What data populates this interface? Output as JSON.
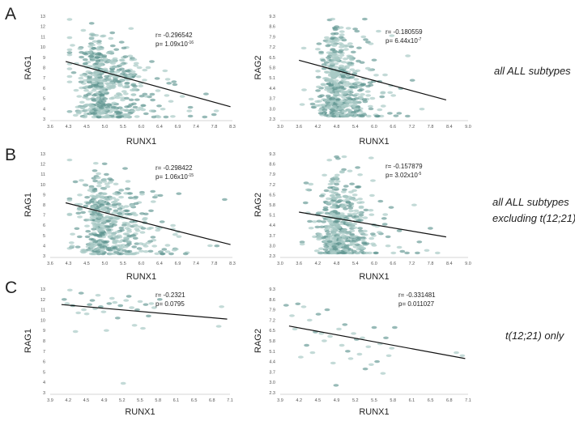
{
  "rows": [
    {
      "label": "A",
      "condition_lines": [
        "all ALL subtypes"
      ]
    },
    {
      "label": "B",
      "condition_lines": [
        "all ALL subtypes",
        "excluding t(12;21)"
      ]
    },
    {
      "label": "C",
      "condition_lines": [
        "t(12;21) only"
      ]
    }
  ],
  "chart_data": [
    {
      "type": "scatter",
      "row": "A",
      "gene": "RAG1",
      "xlabel": "RUNX1",
      "ylabel": "RAG1",
      "xticks": [
        "3.6",
        "4.3",
        "4.5",
        "5.0",
        "5.5",
        "6.0",
        "6.4",
        "6.9",
        "7.4",
        "7.8",
        "8.3"
      ],
      "yticks": [
        "3",
        "4",
        "5",
        "6",
        "7",
        "8",
        "9",
        "10",
        "11",
        "12",
        "13"
      ],
      "xlim": [
        3.6,
        8.3
      ],
      "ylim": [
        3,
        13
      ],
      "stat_r": "r= -0.296542",
      "stat_p_base": "p= 1.09x10",
      "stat_p_exp": "-16",
      "fit": {
        "x": [
          4.0,
          8.25
        ],
        "y": [
          8.6,
          4.2
        ]
      },
      "cloud": {
        "n": 560,
        "seed": 11,
        "xmean": 4.95,
        "xsd": 0.55,
        "xmin": 4.1,
        "xmax": 8.1,
        "ymin": 3.2,
        "ymax": 12.8,
        "ymean": 6.9,
        "ysd": 2.2,
        "slope": -0.9
      }
    },
    {
      "type": "scatter",
      "row": "A",
      "gene": "RAG2",
      "xlabel": "RUNX1",
      "ylabel": "RAG2",
      "xticks": [
        "3.0",
        "3.6",
        "4.2",
        "4.8",
        "5.4",
        "6.0",
        "6.6",
        "7.2",
        "7.8",
        "8.4",
        "9.0"
      ],
      "yticks": [
        "2.3",
        "3.0",
        "3.7",
        "4.4",
        "5.1",
        "5.8",
        "6.5",
        "7.2",
        "7.9",
        "8.6",
        "9.3"
      ],
      "xlim": [
        3.0,
        9.0
      ],
      "ylim": [
        2.3,
        9.3
      ],
      "stat_r": "r= -0.180559",
      "stat_p_base": "p= 6.44x10",
      "stat_p_exp": "-7",
      "fit": {
        "x": [
          3.6,
          8.3
        ],
        "y": [
          6.3,
          3.6
        ]
      },
      "cloud": {
        "n": 560,
        "seed": 23,
        "xmean": 4.85,
        "xsd": 0.5,
        "xmin": 3.7,
        "xmax": 8.2,
        "ymin": 2.5,
        "ymax": 9.1,
        "ymean": 4.9,
        "ysd": 1.7,
        "slope": -0.6
      }
    },
    {
      "type": "scatter",
      "row": "B",
      "gene": "RAG1",
      "xlabel": "RUNX1",
      "ylabel": "RAG1",
      "xticks": [
        "3.6",
        "4.3",
        "4.5",
        "5.0",
        "5.5",
        "6.0",
        "6.4",
        "6.9",
        "7.4",
        "7.8",
        "8.3"
      ],
      "yticks": [
        "3",
        "4",
        "5",
        "6",
        "7",
        "8",
        "9",
        "10",
        "11",
        "12",
        "13"
      ],
      "xlim": [
        3.6,
        8.3
      ],
      "ylim": [
        3,
        13
      ],
      "stat_r": "r= -0.298422",
      "stat_p_base": "p= 1.06x10",
      "stat_p_exp": "-15",
      "fit": {
        "x": [
          4.0,
          8.25
        ],
        "y": [
          8.2,
          4.1
        ]
      },
      "cloud": {
        "n": 500,
        "seed": 37,
        "xmean": 5.0,
        "xsd": 0.55,
        "xmin": 4.1,
        "xmax": 8.1,
        "ymin": 3.2,
        "ymax": 12.4,
        "ymean": 6.8,
        "ysd": 2.1,
        "slope": -0.9
      }
    },
    {
      "type": "scatter",
      "row": "B",
      "gene": "RAG2",
      "xlabel": "RUNX1",
      "ylabel": "RAG2",
      "xticks": [
        "3.0",
        "3.6",
        "4.2",
        "4.8",
        "5.4",
        "6.0",
        "6.6",
        "7.2",
        "7.8",
        "8.4",
        "9.0"
      ],
      "yticks": [
        "2.3",
        "3.0",
        "3.7",
        "4.4",
        "5.1",
        "5.8",
        "6.5",
        "7.2",
        "7.9",
        "8.6",
        "9.3"
      ],
      "xlim": [
        3.0,
        9.0
      ],
      "ylim": [
        2.3,
        9.3
      ],
      "stat_r": "r= -0.157879",
      "stat_p_base": "p= 3.02x10",
      "stat_p_exp": "-5",
      "fit": {
        "x": [
          3.6,
          8.3
        ],
        "y": [
          5.3,
          3.6
        ]
      },
      "cloud": {
        "n": 500,
        "seed": 53,
        "xmean": 4.85,
        "xsd": 0.5,
        "xmin": 3.7,
        "xmax": 8.2,
        "ymin": 2.5,
        "ymax": 9.1,
        "ymean": 4.8,
        "ysd": 1.7,
        "slope": -0.5
      }
    },
    {
      "type": "scatter",
      "row": "C",
      "gene": "RAG1",
      "xlabel": "RUNX1",
      "ylabel": "RAG1",
      "xticks": [
        "3.9",
        "4.2",
        "4.5",
        "4.9",
        "5.2",
        "5.5",
        "5.8",
        "6.1",
        "6.5",
        "6.8",
        "7.1"
      ],
      "yticks": [
        "3",
        "4",
        "5",
        "6",
        "7",
        "8",
        "9",
        "10",
        "11",
        "12",
        "13"
      ],
      "xlim": [
        3.9,
        7.1
      ],
      "ylim": [
        3,
        13
      ],
      "stat_r": "r= -0.2321",
      "stat_p_base": "p= 0.0795",
      "stat_p_exp": "",
      "fit": {
        "x": [
          4.1,
          7.05
        ],
        "y": [
          11.5,
          10.1
        ]
      },
      "points": [
        [
          4.15,
          12.0
        ],
        [
          4.2,
          11.6
        ],
        [
          4.25,
          12.9
        ],
        [
          4.3,
          11.4
        ],
        [
          4.35,
          8.9
        ],
        [
          4.4,
          10.7
        ],
        [
          4.45,
          12.6
        ],
        [
          4.5,
          11.0
        ],
        [
          4.55,
          10.6
        ],
        [
          4.6,
          11.5
        ],
        [
          4.65,
          11.9
        ],
        [
          4.7,
          11.1
        ],
        [
          4.75,
          12.4
        ],
        [
          4.8,
          11.3
        ],
        [
          4.85,
          10.8
        ],
        [
          4.9,
          9.0
        ],
        [
          4.95,
          11.6
        ],
        [
          5.0,
          12.1
        ],
        [
          5.05,
          11.7
        ],
        [
          5.1,
          10.2
        ],
        [
          5.15,
          11.4
        ],
        [
          5.2,
          3.9
        ],
        [
          5.25,
          11.9
        ],
        [
          5.3,
          12.3
        ],
        [
          5.35,
          11.2
        ],
        [
          5.4,
          9.5
        ],
        [
          5.45,
          11.0
        ],
        [
          5.5,
          11.8
        ],
        [
          5.55,
          9.2
        ],
        [
          5.6,
          11.5
        ],
        [
          5.65,
          10.4
        ],
        [
          5.7,
          11.6
        ],
        [
          5.75,
          11.2
        ],
        [
          5.85,
          12.0
        ],
        [
          6.95,
          11.3
        ],
        [
          6.9,
          9.4
        ]
      ]
    },
    {
      "type": "scatter",
      "row": "C",
      "gene": "RAG2",
      "xlabel": "RUNX1",
      "ylabel": "RAG2",
      "xticks": [
        "3.9",
        "4.2",
        "4.5",
        "4.9",
        "5.2",
        "5.5",
        "5.8",
        "6.1",
        "6.5",
        "6.8",
        "7.1"
      ],
      "yticks": [
        "2.3",
        "3.0",
        "3.7",
        "4.4",
        "5.1",
        "5.8",
        "6.5",
        "7.2",
        "7.9",
        "8.6",
        "9.3"
      ],
      "xlim": [
        3.9,
        7.1
      ],
      "ylim": [
        2.3,
        9.3
      ],
      "stat_r": "r= -0.331481",
      "stat_p_base": "p= 0.011027",
      "stat_p_exp": "",
      "fit": {
        "x": [
          4.05,
          7.05
        ],
        "y": [
          6.8,
          4.6
        ]
      },
      "points": [
        [
          4.0,
          8.2
        ],
        [
          4.1,
          7.5
        ],
        [
          4.15,
          6.6
        ],
        [
          4.2,
          8.3
        ],
        [
          4.25,
          4.7
        ],
        [
          4.3,
          8.1
        ],
        [
          4.35,
          5.5
        ],
        [
          4.4,
          7.2
        ],
        [
          4.45,
          5.0
        ],
        [
          4.5,
          6.4
        ],
        [
          4.55,
          7.6
        ],
        [
          4.6,
          6.3
        ],
        [
          4.65,
          5.8
        ],
        [
          4.7,
          7.9
        ],
        [
          4.75,
          6.1
        ],
        [
          4.8,
          4.3
        ],
        [
          4.85,
          2.8
        ],
        [
          4.9,
          6.6
        ],
        [
          4.95,
          5.5
        ],
        [
          5.0,
          6.9
        ],
        [
          5.05,
          5.1
        ],
        [
          5.1,
          4.6
        ],
        [
          5.15,
          6.3
        ],
        [
          5.2,
          5.9
        ],
        [
          5.25,
          4.9
        ],
        [
          5.3,
          6.0
        ],
        [
          5.35,
          3.9
        ],
        [
          5.4,
          5.4
        ],
        [
          5.45,
          4.2
        ],
        [
          5.5,
          6.7
        ],
        [
          5.55,
          4.4
        ],
        [
          5.6,
          5.6
        ],
        [
          5.65,
          3.6
        ],
        [
          5.7,
          6.0
        ],
        [
          5.75,
          4.8
        ],
        [
          5.8,
          5.3
        ],
        [
          5.85,
          6.7
        ],
        [
          6.9,
          5.0
        ],
        [
          7.0,
          4.8
        ]
      ]
    }
  ]
}
